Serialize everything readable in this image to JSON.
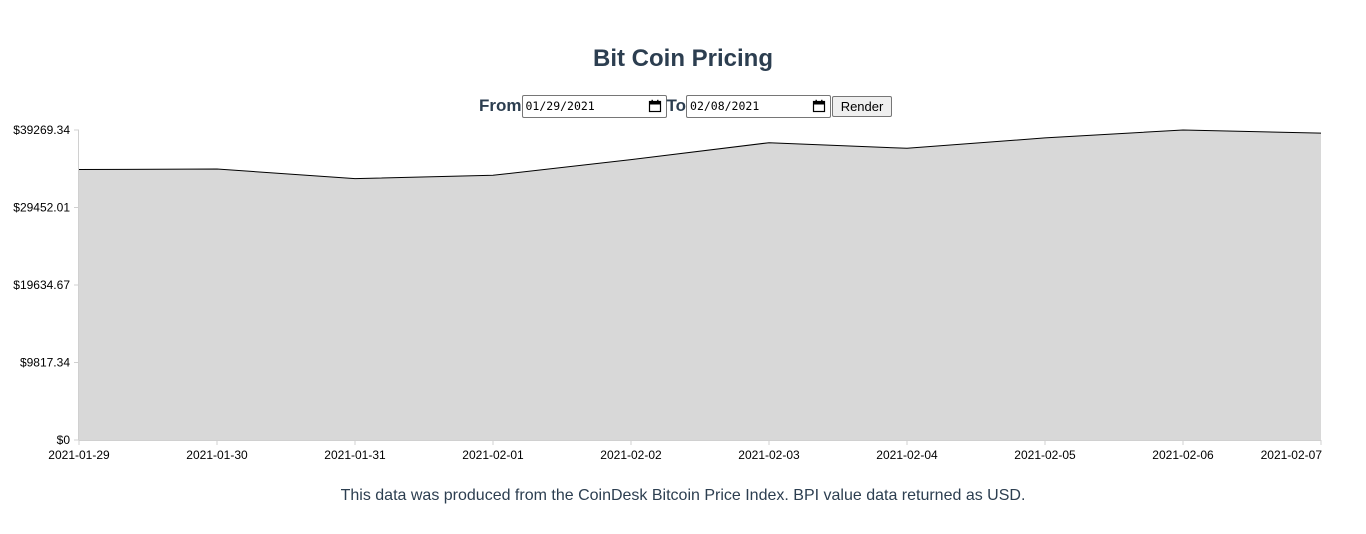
{
  "title": "Bit Coin Pricing",
  "controls": {
    "from_label": "From",
    "from_value": "01/29/2021",
    "to_label": "To",
    "to_value": "02/08/2021",
    "render_label": "Render"
  },
  "footer": "This data was produced from the CoinDesk Bitcoin Price Index. BPI value data returned as USD.",
  "colors": {
    "area_fill": "#d8d8d8",
    "line": "#000000",
    "text": "#2c3e50"
  },
  "chart_data": {
    "type": "area",
    "x": [
      "2021-01-29",
      "2021-01-30",
      "2021-01-31",
      "2021-02-01",
      "2021-02-02",
      "2021-02-03",
      "2021-02-04",
      "2021-02-05",
      "2021-02-06",
      "2021-02-07"
    ],
    "series": [
      {
        "values": [
          34260,
          34330,
          33110,
          33530,
          35520,
          37660,
          36950,
          38270,
          39269.34,
          38870
        ]
      }
    ],
    "y_ticks": [
      "$0",
      "$9817.34",
      "$19634.67",
      "$29452.01",
      "$39269.34"
    ],
    "ylim": [
      0,
      39269.34
    ],
    "grid": false,
    "legend": false
  }
}
